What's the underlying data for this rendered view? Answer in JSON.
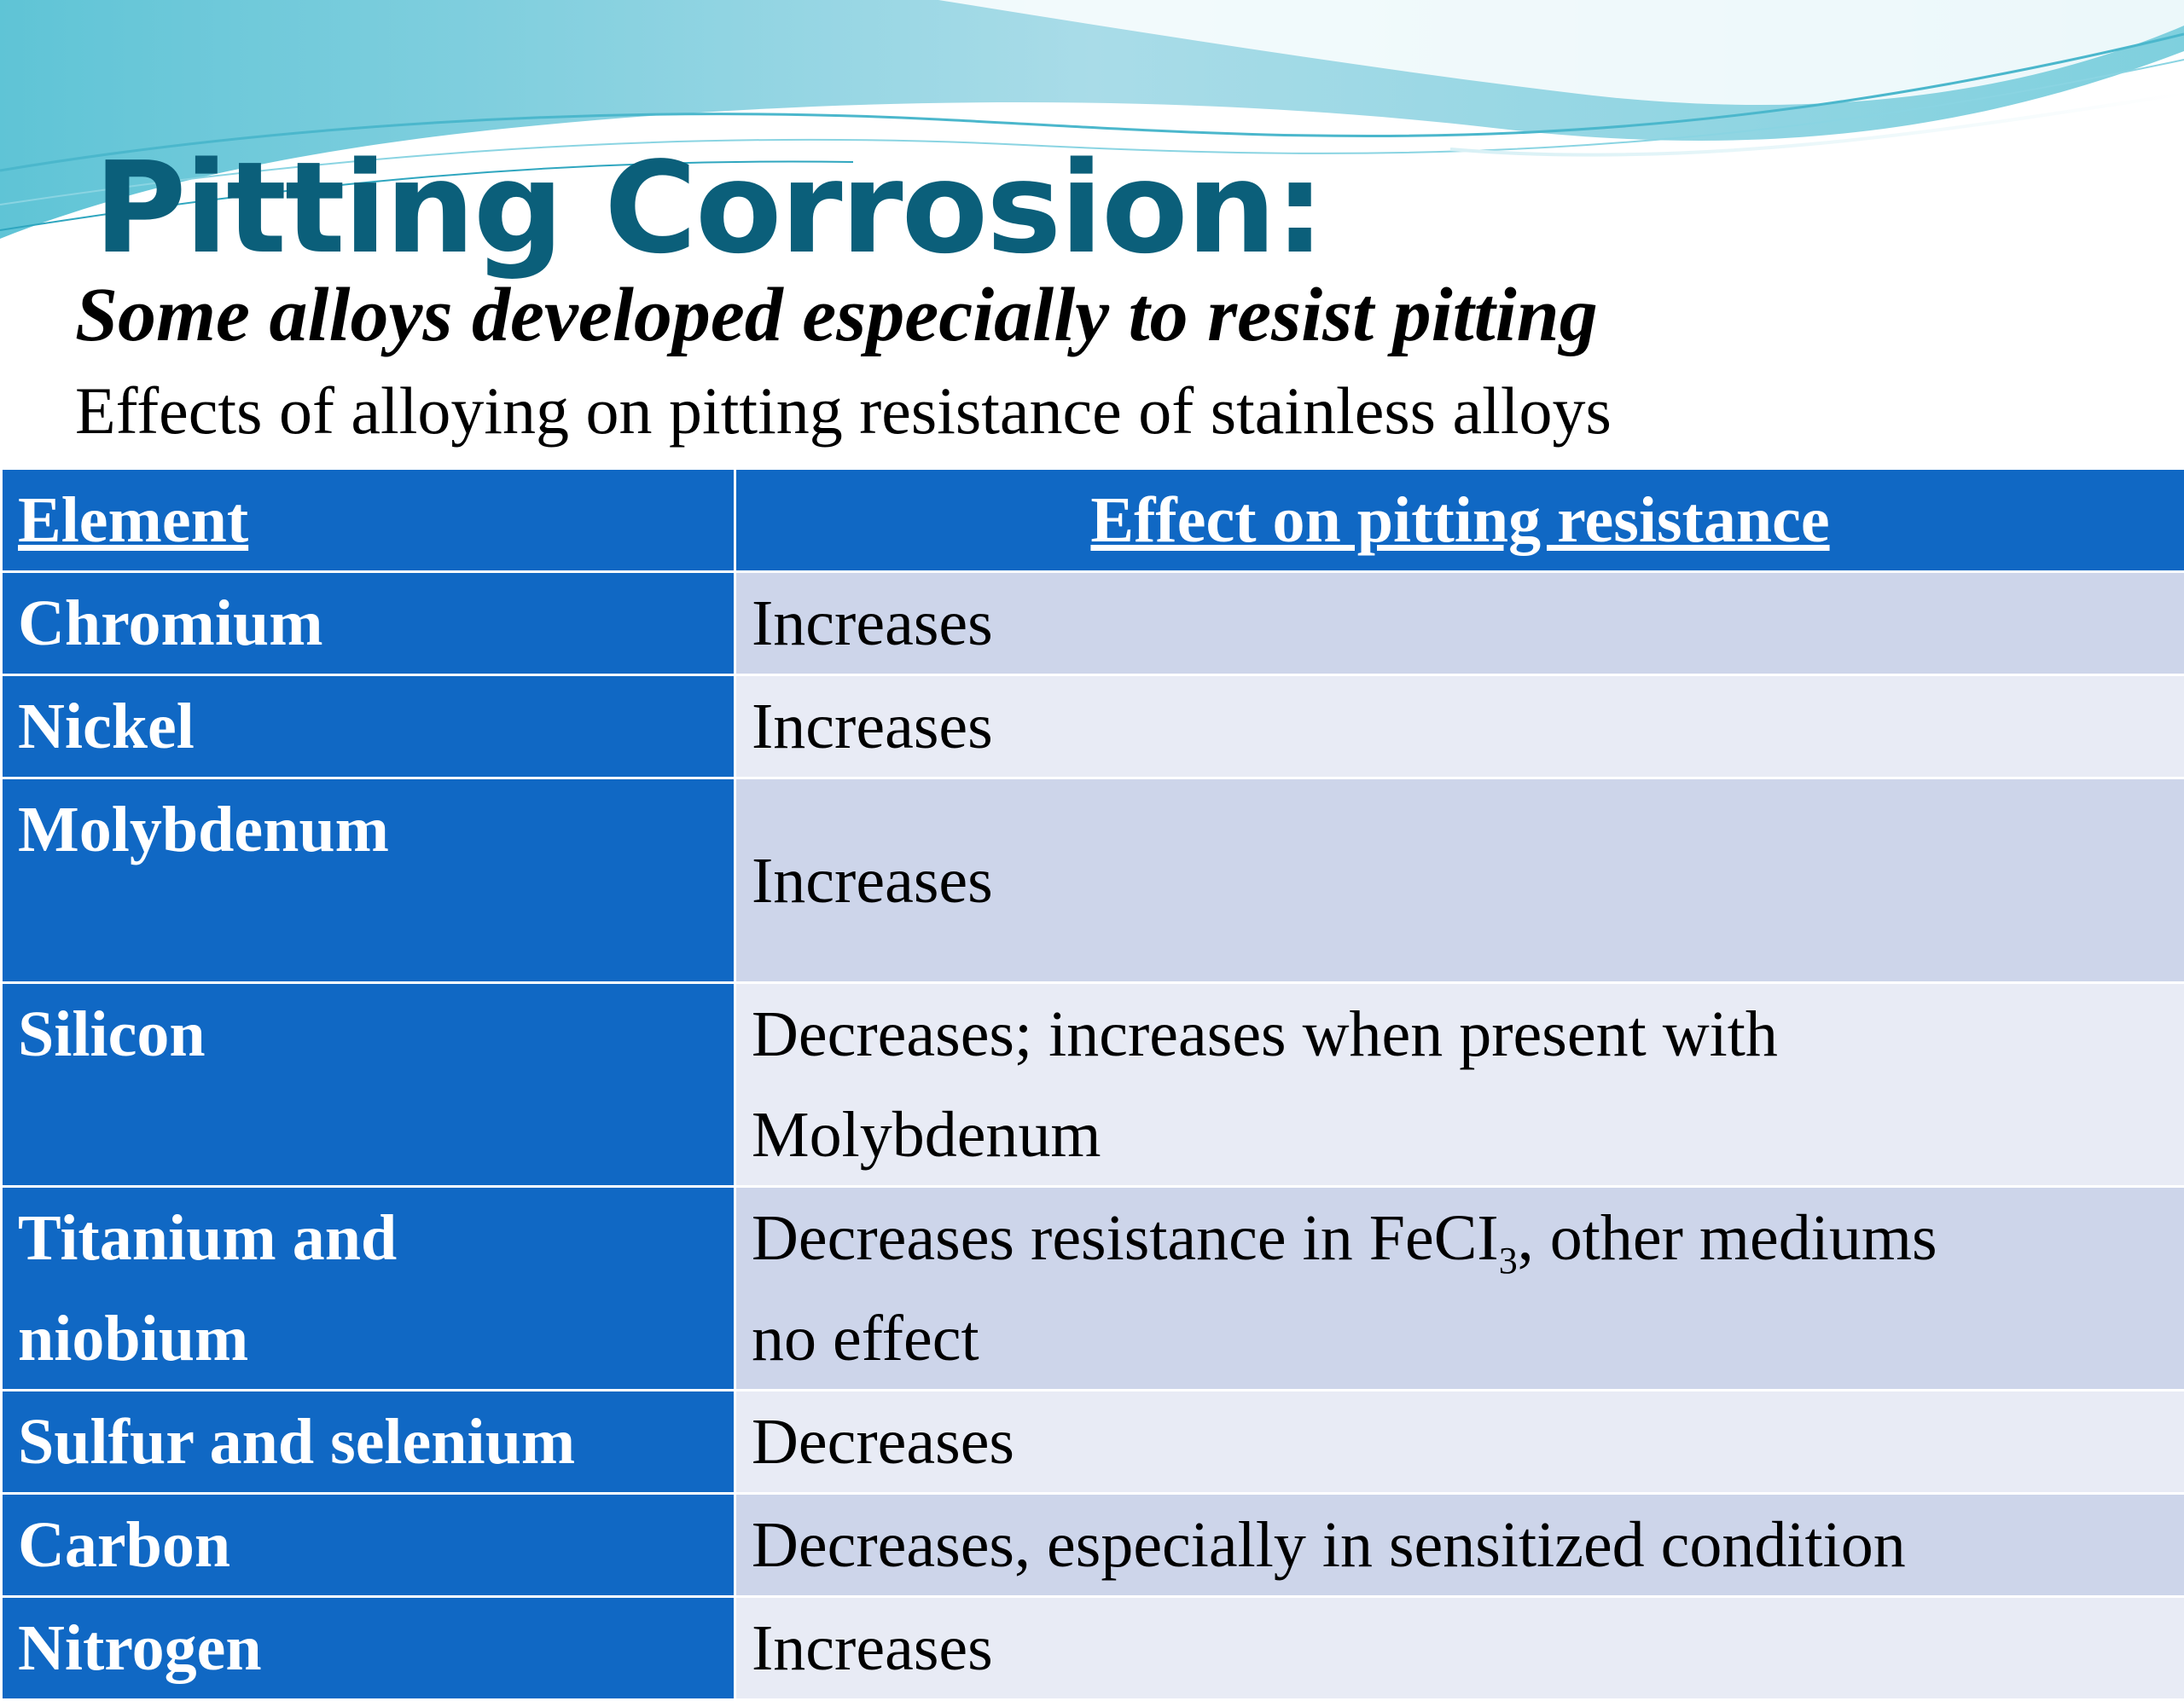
{
  "slide": {
    "title": "Pitting Corrosion:",
    "subtitle": "Some alloys developed especially to resist pitting",
    "caption": "Effects of alloying on pitting resistance of stainless alloys"
  },
  "table": {
    "headers": {
      "element": "Element",
      "effect": "Effect on pitting resistance"
    },
    "rows": [
      {
        "element": "Chromium",
        "effect": "Increases"
      },
      {
        "element": "Nickel",
        "effect": "Increases"
      },
      {
        "element": "Molybdenum",
        "effect": "Increases"
      },
      {
        "element": "Silicon",
        "effect_line1": "Decreases; increases when present with",
        "effect_line2": "Molybdenum"
      },
      {
        "element_line1": "Titanium and",
        "element_line2": "niobium",
        "effect_pre": "Decreases resistance in FeCI",
        "effect_sub": "3",
        "effect_post": ", other mediums",
        "effect_line2": "no effect"
      },
      {
        "element": "Sulfur and selenium",
        "effect": "Decreases"
      },
      {
        "element": "Carbon",
        "effect": "Decreases, especially in sensitized condition"
      },
      {
        "element": "Nitrogen",
        "effect": "Increases"
      }
    ]
  },
  "colors": {
    "title": "#0b5f7a",
    "header_bg": "#1068c4",
    "row_odd": "#cdd5ea",
    "row_even": "#e8ebf5",
    "wave_teal": "#6fc9d9",
    "wave_light": "#bfe6ee"
  }
}
